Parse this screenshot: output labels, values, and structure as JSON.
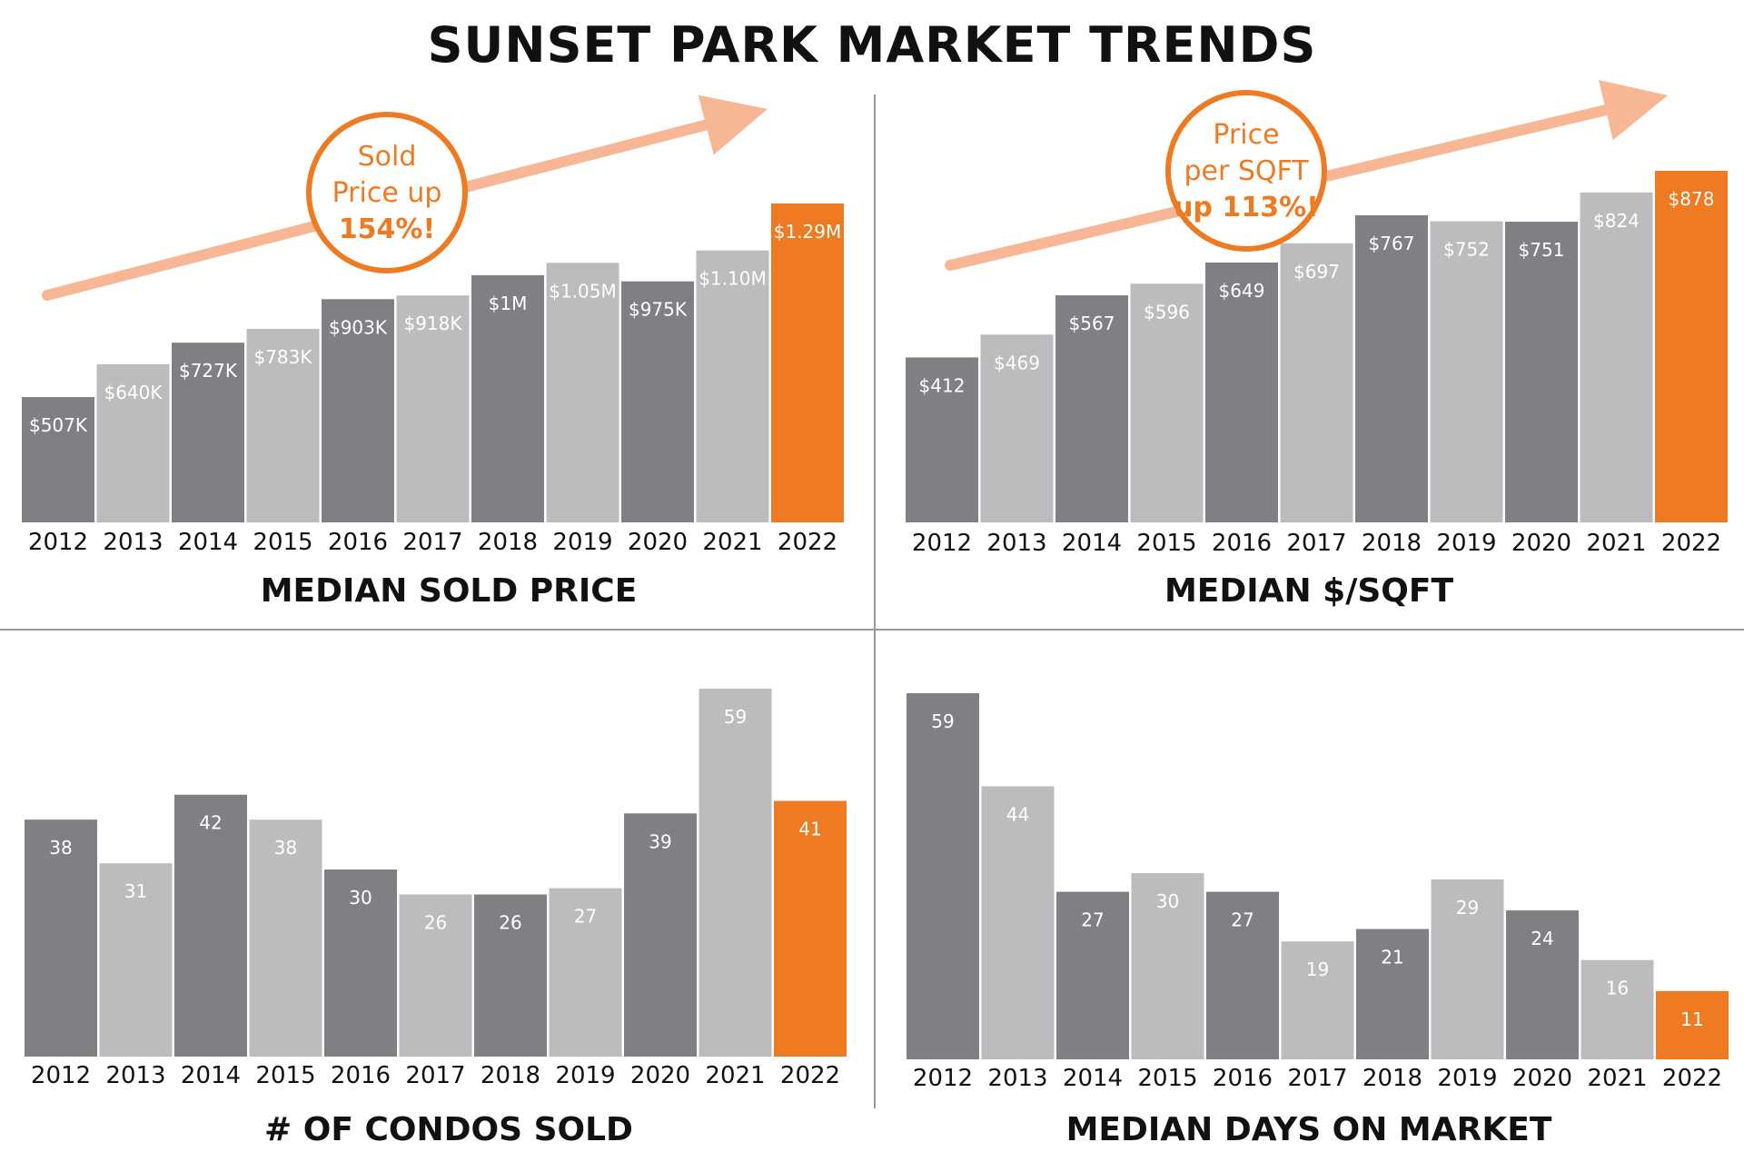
{
  "page": {
    "title": "SUNSET PARK MARKET TRENDS"
  },
  "colors": {
    "dark_bar": "#808084",
    "light_bar": "#bcbcbe",
    "highlight_bar": "#ee7a22",
    "arrow": "#f7b794",
    "callout_text": "#ee7a22",
    "divider": "#9a9a9a"
  },
  "callouts": [
    {
      "lines": [
        "Sold",
        "Price up",
        "154%!"
      ]
    },
    {
      "lines": [
        "Price",
        "per SQFT",
        "up 113%!"
      ]
    }
  ],
  "chart_data": [
    {
      "type": "bar",
      "title": "MEDIAN SOLD PRICE",
      "categories": [
        "2012",
        "2013",
        "2014",
        "2015",
        "2016",
        "2017",
        "2018",
        "2019",
        "2020",
        "2021",
        "2022"
      ],
      "values": [
        507000,
        640000,
        727000,
        783000,
        903000,
        918000,
        1000000,
        1050000,
        975000,
        1100000,
        1290000
      ],
      "labels": [
        "$507K",
        "$640K",
        "$727K",
        "$783K",
        "$903K",
        "$918K",
        "$1M",
        "$1.05M",
        "$975K",
        "$1.10M",
        "$1.29M"
      ],
      "ylim": [
        0,
        1290000
      ],
      "highlight_index": 10,
      "xlabel": "",
      "ylabel": ""
    },
    {
      "type": "bar",
      "title": "MEDIAN $/SQFT",
      "categories": [
        "2012",
        "2013",
        "2014",
        "2015",
        "2016",
        "2017",
        "2018",
        "2019",
        "2020",
        "2021",
        "2022"
      ],
      "values": [
        412,
        469,
        567,
        596,
        649,
        697,
        767,
        752,
        751,
        824,
        878
      ],
      "labels": [
        "$412",
        "$469",
        "$567",
        "$596",
        "$649",
        "$697",
        "$767",
        "$752",
        "$751",
        "$824",
        "$878"
      ],
      "ylim": [
        0,
        878
      ],
      "highlight_index": 10,
      "xlabel": "",
      "ylabel": ""
    },
    {
      "type": "bar",
      "title": "# OF CONDOS SOLD",
      "categories": [
        "2012",
        "2013",
        "2014",
        "2015",
        "2016",
        "2017",
        "2018",
        "2019",
        "2020",
        "2021",
        "2022"
      ],
      "values": [
        38,
        31,
        42,
        38,
        30,
        26,
        26,
        27,
        39,
        59,
        41
      ],
      "labels": [
        "38",
        "31",
        "42",
        "38",
        "30",
        "26",
        "26",
        "27",
        "39",
        "59",
        "41"
      ],
      "ylim": [
        0,
        59
      ],
      "highlight_index": 10,
      "xlabel": "",
      "ylabel": ""
    },
    {
      "type": "bar",
      "title": "MEDIAN DAYS ON MARKET",
      "categories": [
        "2012",
        "2013",
        "2014",
        "2015",
        "2016",
        "2017",
        "2018",
        "2019",
        "2020",
        "2021",
        "2022"
      ],
      "values": [
        59,
        44,
        27,
        30,
        27,
        19,
        21,
        29,
        24,
        16,
        11
      ],
      "labels": [
        "59",
        "44",
        "27",
        "30",
        "27",
        "19",
        "21",
        "29",
        "24",
        "16",
        "11"
      ],
      "ylim": [
        0,
        59
      ],
      "highlight_index": 10,
      "xlabel": "",
      "ylabel": ""
    }
  ]
}
